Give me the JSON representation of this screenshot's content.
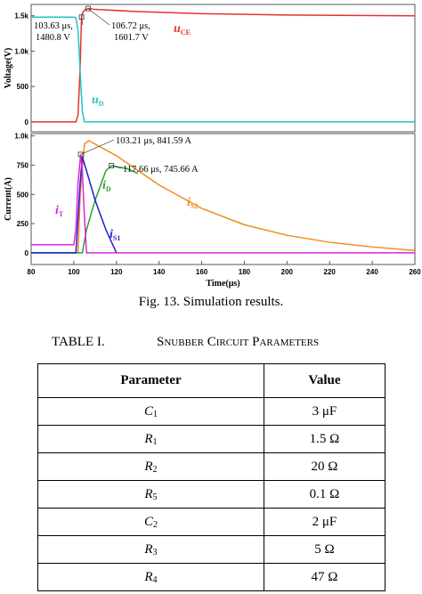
{
  "chart_data": [
    {
      "type": "line",
      "ylabel": "Voltage(V)",
      "xlim": [
        80,
        260
      ],
      "ylim": [
        -140,
        1660
      ],
      "yticks": [
        0,
        500,
        {
          "value": 1000,
          "label": "1.0k"
        },
        {
          "value": 1500,
          "label": "1.5k"
        }
      ],
      "series": [
        {
          "label": {
            "main": "u",
            "sub": "CE"
          },
          "color": "#e8312b",
          "x": [
            80,
            100,
            101,
            102,
            103,
            103.63,
            104,
            105,
            106.72,
            110,
            130,
            160,
            200,
            260
          ],
          "values": [
            0,
            0,
            0,
            100,
            800,
            1480.8,
            1530,
            1580,
            1601.7,
            1590,
            1560,
            1530,
            1510,
            1500
          ]
        },
        {
          "label": {
            "main": "u",
            "sub": "D"
          },
          "color": "#22c4c4",
          "x": [
            80,
            100,
            101,
            102,
            103,
            104,
            105,
            260
          ],
          "values": [
            1480,
            1480,
            1470,
            1300,
            700,
            150,
            0,
            0
          ]
        }
      ],
      "annotations": [
        {
          "x": 103.63,
          "y": 1480.8,
          "lines": [
            "103.63 μs,",
            "1480.8 V"
          ]
        },
        {
          "x": 106.72,
          "y": 1601.7,
          "lines": [
            "106.72 μs,",
            "1601.7 V"
          ]
        }
      ]
    },
    {
      "type": "line",
      "ylabel": "Current(A)",
      "xlabel": "Time(μs)",
      "xlim": [
        80,
        260
      ],
      "ylim": [
        -100,
        1020
      ],
      "xticks": [
        80,
        100,
        120,
        140,
        160,
        180,
        200,
        220,
        240,
        260
      ],
      "yticks": [
        0,
        250,
        500,
        750,
        {
          "value": 1000,
          "label": "1.0k"
        }
      ],
      "series": [
        {
          "label": {
            "main": "i",
            "sub": "S2"
          },
          "color": "#f08c1e",
          "x": [
            80,
            102,
            103,
            105,
            107,
            120,
            140,
            160,
            180,
            200,
            220,
            240,
            260
          ],
          "values": [
            0,
            0,
            500,
            930,
            960,
            830,
            580,
            380,
            240,
            150,
            90,
            50,
            20
          ]
        },
        {
          "label": {
            "main": "i",
            "sub": "D"
          },
          "color": "#2ca02c",
          "x": [
            80,
            104,
            106,
            110,
            115,
            117.66,
            125,
            130
          ],
          "values": [
            0,
            0,
            200,
            450,
            700,
            745.66,
            720,
            680
          ]
        },
        {
          "label": {
            "main": "i",
            "sub": "S1"
          },
          "color": "#1f1fd0",
          "x": [
            80,
            101,
            103,
            104,
            106,
            110,
            115,
            120
          ],
          "values": [
            0,
            0,
            600,
            820,
            700,
            450,
            200,
            0
          ]
        },
        {
          "label": {
            "main": "i",
            "sub": "T"
          },
          "color": "#e020e0",
          "x": [
            80,
            100,
            101,
            102,
            103.21,
            104,
            105,
            106,
            260
          ],
          "values": [
            70,
            70,
            200,
            600,
            841.59,
            700,
            300,
            0,
            0
          ]
        }
      ],
      "annotations": [
        {
          "x": 103.21,
          "y": 841.59,
          "lines": [
            "103.21 μs, 841.59 A"
          ]
        },
        {
          "x": 117.66,
          "y": 745.66,
          "lines": [
            "117.66 μs, 745.66 A"
          ]
        }
      ]
    }
  ],
  "caption": "Fig. 13. Simulation results.",
  "table": {
    "label": "TABLE I.",
    "title": "Snubber Circuit Parameters",
    "header": [
      "Parameter",
      "Value"
    ],
    "rows": [
      [
        [
          "C",
          "1"
        ],
        "3 μF"
      ],
      [
        [
          "R",
          "1"
        ],
        "1.5 Ω"
      ],
      [
        [
          "R",
          "2"
        ],
        "20 Ω"
      ],
      [
        [
          "R",
          "5"
        ],
        "0.1 Ω"
      ],
      [
        [
          "C",
          "2"
        ],
        "2 μF"
      ],
      [
        [
          "R",
          "3"
        ],
        "5 Ω"
      ],
      [
        [
          "R",
          "4"
        ],
        "47 Ω"
      ]
    ]
  }
}
